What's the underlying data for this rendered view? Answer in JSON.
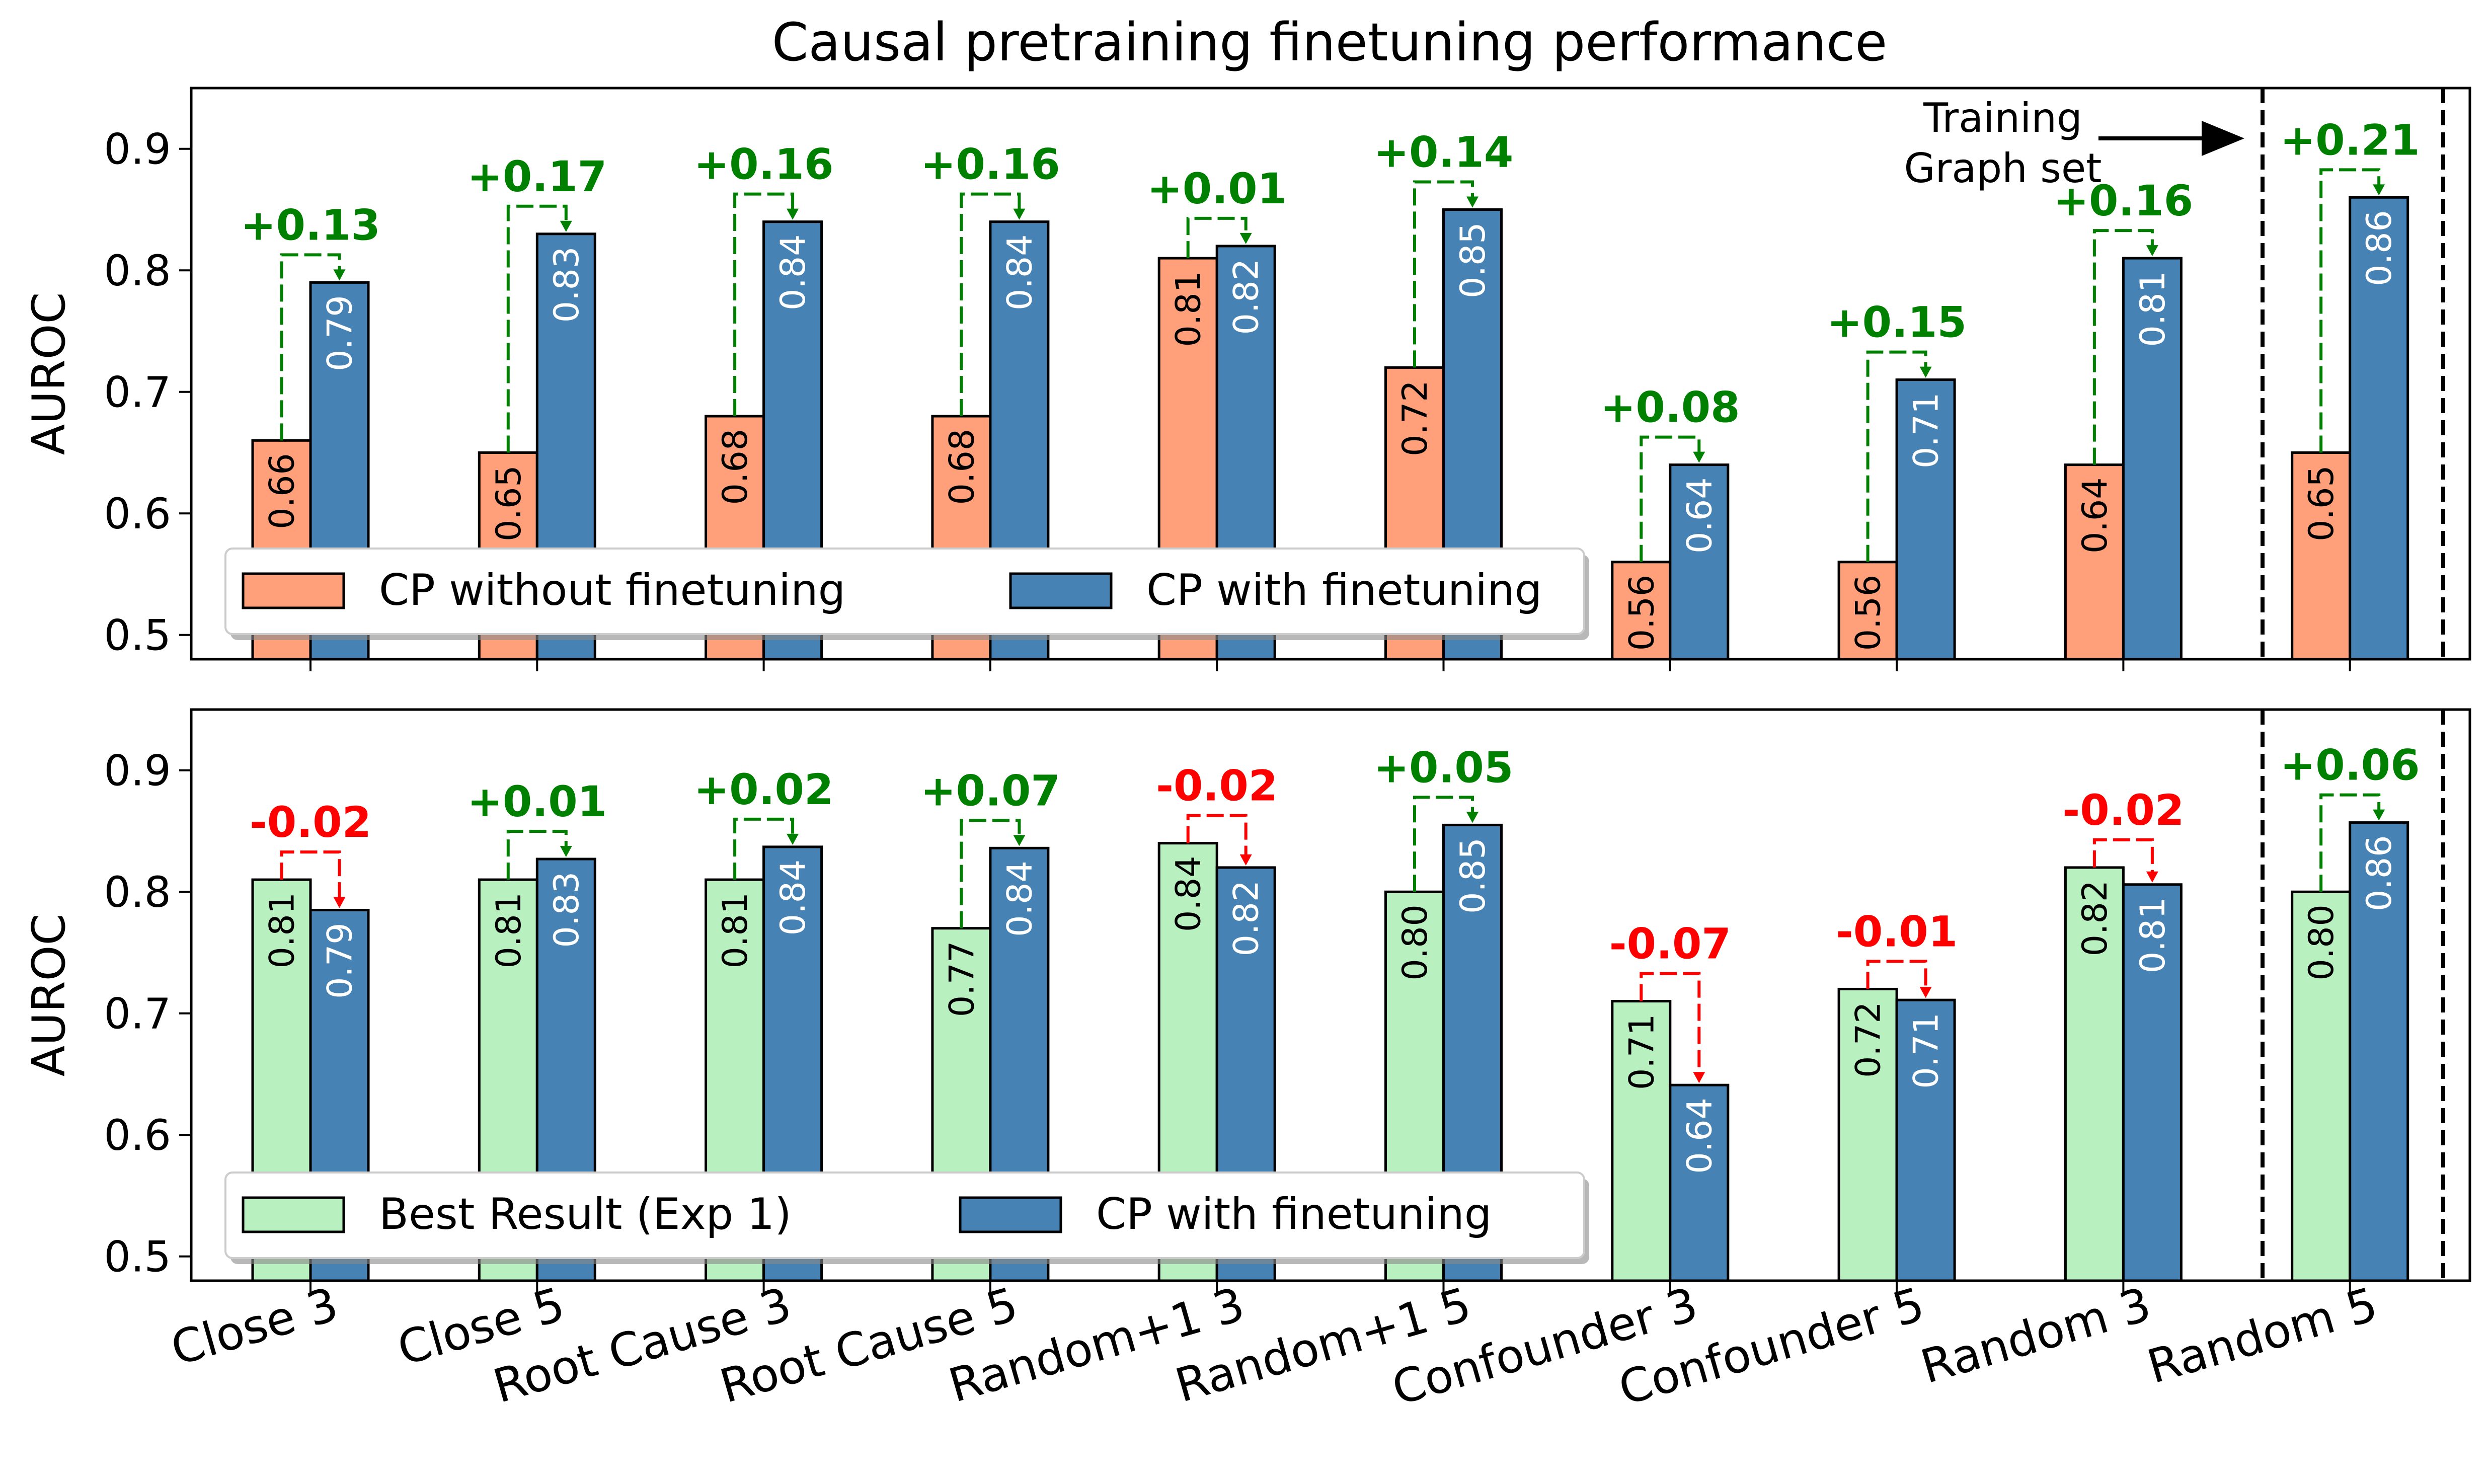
{
  "chart_data": {
    "type": "bar",
    "title": "Causal pretraining finetuning performance",
    "categories": [
      "Close 3",
      "Close 5",
      "Root Cause 3",
      "Root Cause 5",
      "Random+1 3",
      "Random+1 5",
      "Confounder 3",
      "Confounder 5",
      "Random 3",
      "Random 5"
    ],
    "annotation": {
      "text_line1": "Training",
      "text_line2": "Graph set"
    },
    "colors": {
      "without_finetuning": "#FFA07A",
      "with_finetuning": "#4682B4",
      "best_result": "#B8F0C0",
      "positive_diff": "#008000",
      "negative_diff": "#FF0000"
    },
    "panels": [
      {
        "ylabel": "AUROC",
        "ylim": [
          0.48,
          0.95
        ],
        "yticks": [
          "0.5",
          "0.6",
          "0.7",
          "0.8",
          "0.9"
        ],
        "ytick_values": [
          0.5,
          0.6,
          0.7,
          0.8,
          0.9
        ],
        "legend_position": "lower-left",
        "series": [
          {
            "name": "CP without finetuning",
            "color": "#FFA07A",
            "values": [
              0.66,
              0.65,
              0.68,
              0.68,
              0.81,
              0.72,
              0.56,
              0.56,
              0.64,
              0.65
            ],
            "labels": [
              "0.66",
              "0.65",
              "0.68",
              "0.68",
              "0.81",
              "0.72",
              "0.56",
              "0.56",
              "0.64",
              "0.65"
            ]
          },
          {
            "name": "CP with finetuning",
            "color": "#4682B4",
            "values": [
              0.79,
              0.83,
              0.84,
              0.84,
              0.82,
              0.85,
              0.64,
              0.71,
              0.81,
              0.86
            ],
            "labels": [
              "0.79",
              "0.83",
              "0.84",
              "0.84",
              "0.82",
              "0.85",
              "0.64",
              "0.71",
              "0.81",
              "0.86"
            ]
          }
        ],
        "differences": [
          "+0.13",
          "+0.17",
          "+0.16",
          "+0.16",
          "+0.01",
          "+0.14",
          "+0.08",
          "+0.15",
          "+0.16",
          "+0.21"
        ]
      },
      {
        "ylabel": "AUROC",
        "ylim": [
          0.48,
          0.95
        ],
        "yticks": [
          "0.5",
          "0.6",
          "0.7",
          "0.8",
          "0.9"
        ],
        "ytick_values": [
          0.5,
          0.6,
          0.7,
          0.8,
          0.9
        ],
        "legend_position": "lower-left",
        "series": [
          {
            "name": "Best Result (Exp 1)",
            "color": "#B8F0C0",
            "values": [
              0.81,
              0.81,
              0.81,
              0.77,
              0.84,
              0.8,
              0.71,
              0.72,
              0.82,
              0.8
            ],
            "labels": [
              "0.81",
              "0.81",
              "0.81",
              "0.77",
              "0.84",
              "0.80",
              "0.71",
              "0.72",
              "0.82",
              "0.80"
            ]
          },
          {
            "name": "CP with finetuning",
            "color": "#4682B4",
            "values": [
              0.785,
              0.827,
              0.837,
              0.836,
              0.82,
              0.855,
              0.641,
              0.711,
              0.806,
              0.857
            ],
            "labels": [
              "0.79",
              "0.83",
              "0.84",
              "0.84",
              "0.82",
              "0.85",
              "0.64",
              "0.71",
              "0.81",
              "0.86"
            ]
          }
        ],
        "differences": [
          "-0.02",
          "+0.01",
          "+0.02",
          "+0.07",
          "-0.02",
          "+0.05",
          "-0.07",
          "-0.01",
          "-0.02",
          "+0.06"
        ]
      }
    ]
  }
}
